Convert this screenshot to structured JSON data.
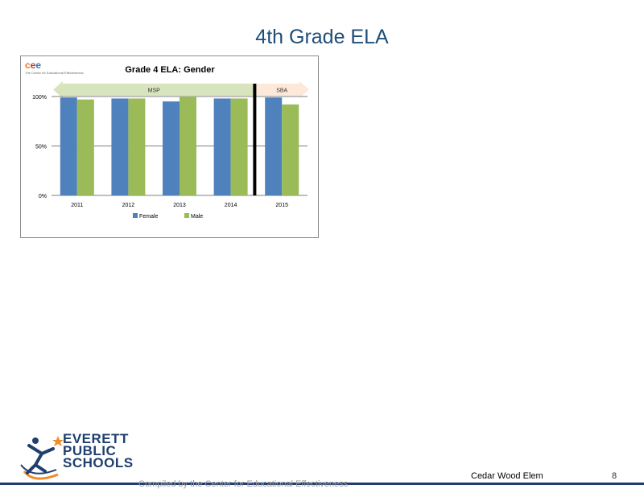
{
  "slide": {
    "title": "4th Grade ELA",
    "footer_credit": "Compiled by the Center for Educational Effectiveness",
    "school_name": "Cedar Wood Elem",
    "page_number": "8"
  },
  "logos": {
    "cee_letters": [
      "c",
      "e",
      "e"
    ],
    "cee_subtitle": "The Center for Educational Effectiveness",
    "district_lines": [
      "EVERETT",
      "PUBLIC",
      "SCHOOLS"
    ]
  },
  "colors": {
    "female": "#4f81bd",
    "male": "#9bbb59",
    "msp_arrow": "#d7e4bd",
    "sba_arrow": "#fde9d9",
    "title": "#1f4e79",
    "gridline": "#7f7f7f"
  },
  "chart_data": {
    "type": "bar",
    "title": "Grade 4 ELA: Gender",
    "categories": [
      "2011",
      "2012",
      "2013",
      "2014",
      "2015"
    ],
    "series": [
      {
        "name": "Female",
        "values": [
          99,
          98,
          95,
          98,
          99
        ]
      },
      {
        "name": "Male",
        "values": [
          97,
          98,
          100,
          98,
          92
        ]
      }
    ],
    "ylim": [
      0,
      100
    ],
    "yticks": [
      0,
      50,
      100
    ],
    "ytick_labels": [
      "0%",
      "50%",
      "100%"
    ],
    "grid": true,
    "legend": "bottom",
    "annotations": [
      {
        "label": "MSP",
        "from": "2011",
        "to": "2014"
      },
      {
        "label": "SBA",
        "from": "2015",
        "to": "2015"
      }
    ],
    "divider_after": "2014"
  }
}
